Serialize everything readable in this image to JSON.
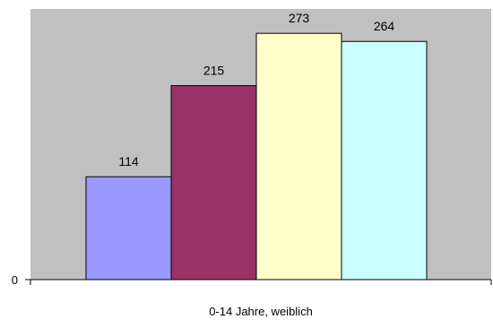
{
  "chart_data": {
    "type": "bar",
    "categories": [
      "0-14 Jahre, weiblich"
    ],
    "series": [
      {
        "values": [
          114
        ],
        "color": "#9999FF"
      },
      {
        "values": [
          215
        ],
        "color": "#993366"
      },
      {
        "values": [
          273
        ],
        "color": "#FFFFCC"
      },
      {
        "values": [
          264
        ],
        "color": "#CCFFFF"
      }
    ],
    "yticks": [
      "0"
    ],
    "ylim": [
      0,
      300
    ],
    "plot_background": "#C0C0C0",
    "grid": false,
    "legend": "none"
  }
}
